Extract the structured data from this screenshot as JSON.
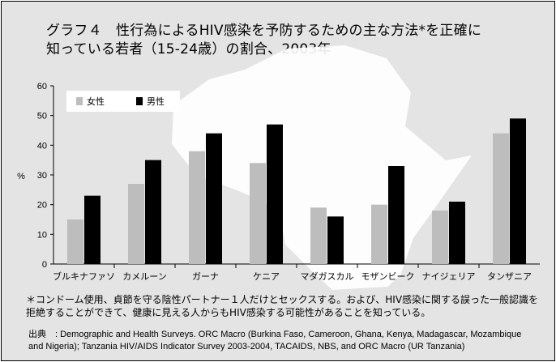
{
  "title_line1": "グラフ４　性行為によるHIV感染を予防するための主な方法*を正確に",
  "title_line2": "知っている若者（15-24歳）の割合、2003年",
  "footnote_line1": "＊コンドーム使用、貞節を守る陰性パートナー１人だけとセックスする。および、HIV感染に関する誤った一般認識を",
  "footnote_line2": "拒絶することができて、健康に見える人からもHIV感染する可能性があることを知っている。",
  "source_line1": "出典　: Demographic and Health Surveys. ORC Macro (Burkina Faso, Cameroon, Ghana, Kenya, Madagascar, Mozambique",
  "source_line2": "and Nigeria); Tanzania HIV/AIDS Indicator Survey 2003-2004, TACAIDS, NBS, and ORC Macro (UR Tanzania)",
  "colors": {
    "background": "#e4e4e4",
    "map": "#ffffff",
    "female": "#bdbdbd",
    "male": "#000000"
  },
  "chart_data": {
    "type": "bar",
    "title": "グラフ４　性行為によるHIV感染を予防するための主な方法*を正確に知っている若者（15-24歳）の割合、2003年",
    "xlabel": "",
    "ylabel": "%",
    "ylim": [
      0,
      60
    ],
    "yticks": [
      0,
      10,
      20,
      30,
      40,
      50,
      60
    ],
    "grid": false,
    "legend_position": "top-left",
    "categories": [
      "ブルキナファソ",
      "カメルーン",
      "ガーナ",
      "ケニア",
      "マダガスカル",
      "モザンビーク",
      "ナイジェリア",
      "タンザニア"
    ],
    "series": [
      {
        "name": "女性",
        "color": "#bdbdbd",
        "values": [
          15,
          27,
          38,
          34,
          19,
          20,
          18,
          44
        ]
      },
      {
        "name": "男性",
        "color": "#000000",
        "values": [
          23,
          35,
          44,
          47,
          16,
          33,
          21,
          49
        ]
      }
    ]
  }
}
